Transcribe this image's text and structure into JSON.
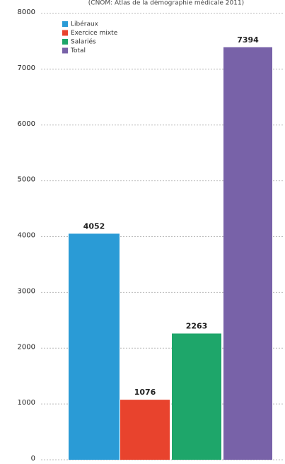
{
  "chart_data": {
    "type": "bar",
    "title": "(CNOM: Atlas de la démographie médicale 2011)",
    "series": [
      {
        "name": "Libéraux",
        "color": "#2a9bd6",
        "values": [
          4052
        ]
      },
      {
        "name": "Exercice mixte",
        "color": "#e8432d",
        "values": [
          1076
        ]
      },
      {
        "name": "Salariés",
        "color": "#1ea66a",
        "values": [
          2263
        ]
      },
      {
        "name": "Total",
        "color": "#7862a8",
        "values": [
          7394
        ]
      }
    ],
    "ylim": [
      0,
      8000
    ],
    "yticks": [
      0,
      1000,
      2000,
      3000,
      4000,
      5000,
      6000,
      7000,
      8000
    ],
    "grid": true,
    "legend": "upper-left"
  }
}
